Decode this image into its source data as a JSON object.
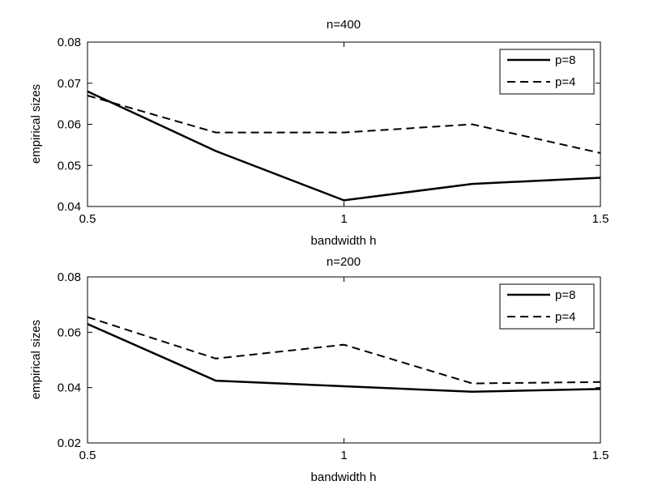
{
  "chart_data": [
    {
      "type": "line",
      "title": "n=400",
      "xlabel": "bandwidth h",
      "ylabel": "empirical sizes",
      "xlim": [
        0.5,
        1.5
      ],
      "ylim": [
        0.04,
        0.08
      ],
      "xticks": [
        0.5,
        1,
        1.5
      ],
      "yticks": [
        0.04,
        0.05,
        0.06,
        0.07,
        0.08
      ],
      "xtick_labels": [
        "0.5",
        "1",
        "1.5"
      ],
      "ytick_labels": [
        "0.04",
        "0.05",
        "0.06",
        "0.07",
        "0.08"
      ],
      "grid": false,
      "legend_position": "top-right",
      "x": [
        0.5,
        0.75,
        1.0,
        1.25,
        1.5
      ],
      "series": [
        {
          "name": "p=8",
          "style": "solid",
          "values": [
            0.068,
            0.0535,
            0.0415,
            0.0455,
            0.047
          ]
        },
        {
          "name": "p=4",
          "style": "dashed",
          "values": [
            0.067,
            0.058,
            0.058,
            0.06,
            0.053
          ]
        }
      ]
    },
    {
      "type": "line",
      "title": "n=200",
      "xlabel": "bandwidth h",
      "ylabel": "empirical sizes",
      "xlim": [
        0.5,
        1.5
      ],
      "ylim": [
        0.02,
        0.08
      ],
      "xticks": [
        0.5,
        1,
        1.5
      ],
      "yticks": [
        0.02,
        0.04,
        0.06,
        0.08
      ],
      "xtick_labels": [
        "0.5",
        "1",
        "1.5"
      ],
      "ytick_labels": [
        "0.02",
        "0.04",
        "0.06",
        "0.08"
      ],
      "grid": false,
      "legend_position": "top-right",
      "x": [
        0.5,
        0.75,
        1.0,
        1.25,
        1.5
      ],
      "series": [
        {
          "name": "p=8",
          "style": "solid",
          "values": [
            0.063,
            0.0425,
            0.0405,
            0.0385,
            0.0395
          ]
        },
        {
          "name": "p=4",
          "style": "dashed",
          "values": [
            0.0655,
            0.0505,
            0.0555,
            0.0415,
            0.042
          ]
        }
      ]
    }
  ],
  "colors": {
    "line": "#000000",
    "axes": "#000000",
    "background": "#ffffff"
  }
}
